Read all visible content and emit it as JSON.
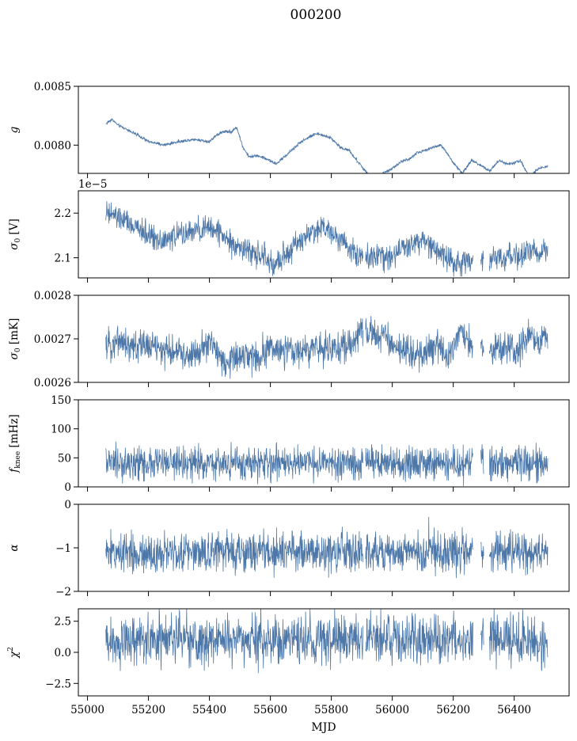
{
  "figure": {
    "title": "000200",
    "xlabel": "MJD"
  },
  "colors": {
    "series": "#4c77a8",
    "axis": "#000000",
    "background": "#ffffff"
  },
  "chart_data": [
    {
      "type": "line",
      "ylabel": "g",
      "xlim": [
        54970,
        56580
      ],
      "ylim": [
        0.00776,
        0.0085
      ],
      "xticks": [
        55000,
        55200,
        55400,
        55600,
        55800,
        56000,
        56200,
        56400
      ],
      "yticks": [
        0.008,
        0.0085
      ],
      "ytick_labels": [
        "0.0080",
        "0.0085"
      ],
      "offset_label": "",
      "x": [
        55060,
        55080,
        55100,
        55140,
        55200,
        55250,
        55300,
        55350,
        55400,
        55420,
        55450,
        55470,
        55490,
        55510,
        55530,
        55560,
        55590,
        55620,
        55650,
        55700,
        55750,
        55800,
        55830,
        55860,
        55880,
        55900,
        55920,
        55940,
        55970,
        56000,
        56030,
        56060,
        56080,
        56100,
        56130,
        56160,
        56180,
        56200,
        56230,
        56260,
        56290,
        56320,
        56350,
        56380,
        56400,
        56420,
        56450,
        56480,
        56510
      ],
      "series": [
        {
          "values": [
            0.00818,
            0.00822,
            0.00817,
            0.00812,
            0.00803,
            0.008,
            0.00803,
            0.00805,
            0.00803,
            0.00808,
            0.00812,
            0.00811,
            0.00815,
            0.00798,
            0.0079,
            0.00791,
            0.00788,
            0.00784,
            0.00791,
            0.00803,
            0.0081,
            0.00806,
            0.00798,
            0.00795,
            0.00788,
            0.00782,
            0.00775,
            0.00772,
            0.00776,
            0.0078,
            0.00786,
            0.00789,
            0.00793,
            0.00795,
            0.00798,
            0.008,
            0.00793,
            0.00785,
            0.00776,
            0.00787,
            0.00783,
            0.00778,
            0.00787,
            0.00784,
            0.00785,
            0.00787,
            0.00773,
            0.0078,
            0.00782
          ],
          "noise": 6e-06
        }
      ]
    },
    {
      "type": "line",
      "ylabel": "σ0 [V]",
      "xlim": [
        54970,
        56580
      ],
      "ylim": [
        2.055,
        2.25
      ],
      "xticks": [
        55000,
        55200,
        55400,
        55600,
        55800,
        56000,
        56200,
        56400
      ],
      "yticks": [
        2.1,
        2.2
      ],
      "ytick_labels": [
        "2.1",
        "2.2"
      ],
      "offset_label": "1e−5",
      "x": [
        55060,
        55100,
        55150,
        55200,
        55250,
        55300,
        55350,
        55400,
        55430,
        55460,
        55500,
        55540,
        55580,
        55610,
        55640,
        55680,
        55720,
        55760,
        55800,
        55840,
        55870,
        55900,
        55930,
        55960,
        55990,
        56020,
        56060,
        56100,
        56140,
        56170,
        56200,
        56240,
        56270,
        56300,
        56340,
        56380,
        56420,
        56460,
        56510
      ],
      "series": [
        {
          "values": [
            2.2,
            2.19,
            2.17,
            2.15,
            2.14,
            2.15,
            2.16,
            2.165,
            2.16,
            2.14,
            2.125,
            2.11,
            2.1,
            2.08,
            2.1,
            2.13,
            2.15,
            2.17,
            2.16,
            2.14,
            2.115,
            2.1,
            2.105,
            2.11,
            2.1,
            2.115,
            2.13,
            2.14,
            2.12,
            2.1,
            2.09,
            2.095,
            2.085,
            2.09,
            2.095,
            2.1,
            2.105,
            2.11,
            2.115
          ],
          "noise": 0.014
        }
      ]
    },
    {
      "type": "line",
      "ylabel": "σ0 [mK]",
      "xlim": [
        54970,
        56580
      ],
      "ylim": [
        0.0026,
        0.0028
      ],
      "xticks": [
        55000,
        55200,
        55400,
        55600,
        55800,
        56000,
        56200,
        56400
      ],
      "yticks": [
        0.0026,
        0.0027,
        0.0028
      ],
      "ytick_labels": [
        "0.0026",
        "0.0027",
        "0.0028"
      ],
      "offset_label": "",
      "x": [
        55060,
        55100,
        55150,
        55200,
        55250,
        55300,
        55350,
        55400,
        55430,
        55460,
        55500,
        55560,
        55600,
        55650,
        55700,
        55750,
        55800,
        55850,
        55880,
        55900,
        55920,
        55950,
        55980,
        56000,
        56050,
        56100,
        56150,
        56180,
        56200,
        56220,
        56260,
        56300,
        56340,
        56380,
        56420,
        56450,
        56480,
        56510
      ],
      "series": [
        {
          "values": [
            0.00268,
            0.0027,
            0.00268,
            0.00269,
            0.00267,
            0.00267,
            0.00266,
            0.00269,
            0.00267,
            0.00264,
            0.00266,
            0.00266,
            0.00268,
            0.00267,
            0.00267,
            0.00268,
            0.00268,
            0.00268,
            0.0027,
            0.00273,
            0.00272,
            0.0027,
            0.00271,
            0.00268,
            0.00267,
            0.00266,
            0.00269,
            0.00266,
            0.00268,
            0.00272,
            0.00268,
            0.00267,
            0.00268,
            0.00267,
            0.00268,
            0.00272,
            0.00269,
            0.0027
          ],
          "noise": 1.8e-05
        }
      ]
    },
    {
      "type": "line",
      "ylabel": "fknee [mHz]",
      "xlim": [
        54970,
        56580
      ],
      "ylim": [
        0,
        150
      ],
      "xticks": [
        55000,
        55200,
        55400,
        55600,
        55800,
        56000,
        56200,
        56400
      ],
      "yticks": [
        0,
        50,
        100,
        150
      ],
      "ytick_labels": [
        "0",
        "50",
        "100",
        "150"
      ],
      "offset_label": "",
      "x": [
        55060,
        56510
      ],
      "series": [
        {
          "values": [
            40,
            40
          ],
          "noise": 14
        }
      ]
    },
    {
      "type": "line",
      "ylabel": "α",
      "xlim": [
        54970,
        56580
      ],
      "ylim": [
        -2,
        0
      ],
      "xticks": [
        55000,
        55200,
        55400,
        55600,
        55800,
        56000,
        56200,
        56400
      ],
      "yticks": [
        -2,
        -1,
        0
      ],
      "ytick_labels": [
        "−2",
        "−1",
        "0"
      ],
      "offset_label": "",
      "x": [
        55060,
        56510
      ],
      "series": [
        {
          "values": [
            -1.1,
            -1.1
          ],
          "noise": 0.22
        }
      ]
    },
    {
      "type": "line",
      "ylabel": "χ²",
      "xlim": [
        54970,
        56580
      ],
      "ylim": [
        -3.5,
        3.5
      ],
      "xticks": [
        55000,
        55200,
        55400,
        55600,
        55800,
        56000,
        56200,
        56400
      ],
      "xtick_labels": [
        "55000",
        "55200",
        "55400",
        "55600",
        "55800",
        "56000",
        "56200",
        "56400"
      ],
      "yticks": [
        -2.5,
        0,
        2.5
      ],
      "ytick_labels": [
        "−2.5",
        "0.0",
        "2.5"
      ],
      "offset_label": "",
      "x": [
        55060,
        56510
      ],
      "series": [
        {
          "values": [
            1.0,
            1.0
          ],
          "noise": 1.0
        }
      ]
    }
  ]
}
